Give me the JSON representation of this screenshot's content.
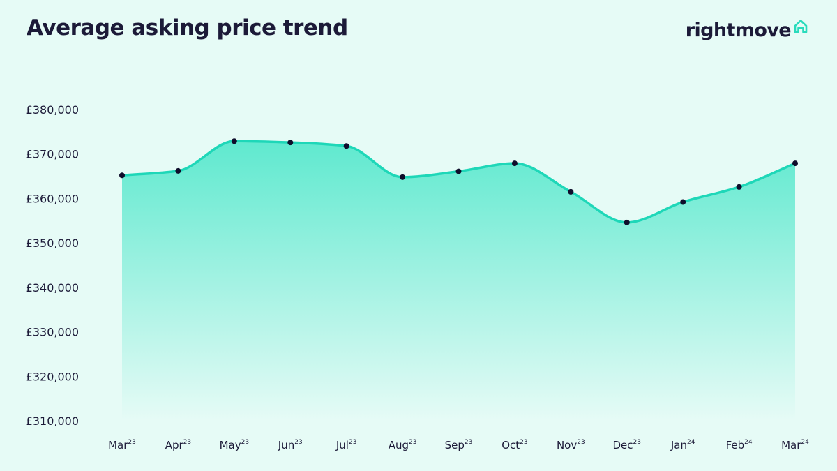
{
  "header": {
    "title": "Average asking price trend",
    "brand": "rightmove",
    "brand_icon": "house-outline-icon"
  },
  "colors": {
    "background": "#e6fbf6",
    "line": "#1ed7b8",
    "fill_top": "#5fe9cf",
    "marker": "#0f0d2b",
    "text": "#1c1a38",
    "brand_icon": "#29dbbc"
  },
  "chart_data": {
    "type": "area",
    "title": "Average asking price trend",
    "xlabel": "",
    "ylabel": "",
    "categories": [
      {
        "month": "Mar",
        "year": "23"
      },
      {
        "month": "Apr",
        "year": "23"
      },
      {
        "month": "May",
        "year": "23"
      },
      {
        "month": "Jun",
        "year": "23"
      },
      {
        "month": "Jul",
        "year": "23"
      },
      {
        "month": "Aug",
        "year": "23"
      },
      {
        "month": "Sep",
        "year": "23"
      },
      {
        "month": "Oct",
        "year": "23"
      },
      {
        "month": "Nov",
        "year": "23"
      },
      {
        "month": "Dec",
        "year": "23"
      },
      {
        "month": "Jan",
        "year": "24"
      },
      {
        "month": "Feb",
        "year": "24"
      },
      {
        "month": "Mar",
        "year": "24"
      }
    ],
    "series": [
      {
        "values": [
          365200,
          366200,
          372900,
          372600,
          371800,
          364800,
          366100,
          367900,
          361500,
          354600,
          359200,
          362600,
          367900
        ]
      }
    ],
    "ylim": [
      310000,
      380000
    ],
    "yticks": [
      380000,
      370000,
      360000,
      350000,
      340000,
      330000,
      320000,
      310000
    ],
    "ytick_labels": [
      "£380,000",
      "£370,000",
      "£360,000",
      "£350,000",
      "£340,000",
      "£330,000",
      "£320,000",
      "£310,000"
    ],
    "grid": false,
    "legend": "none"
  }
}
